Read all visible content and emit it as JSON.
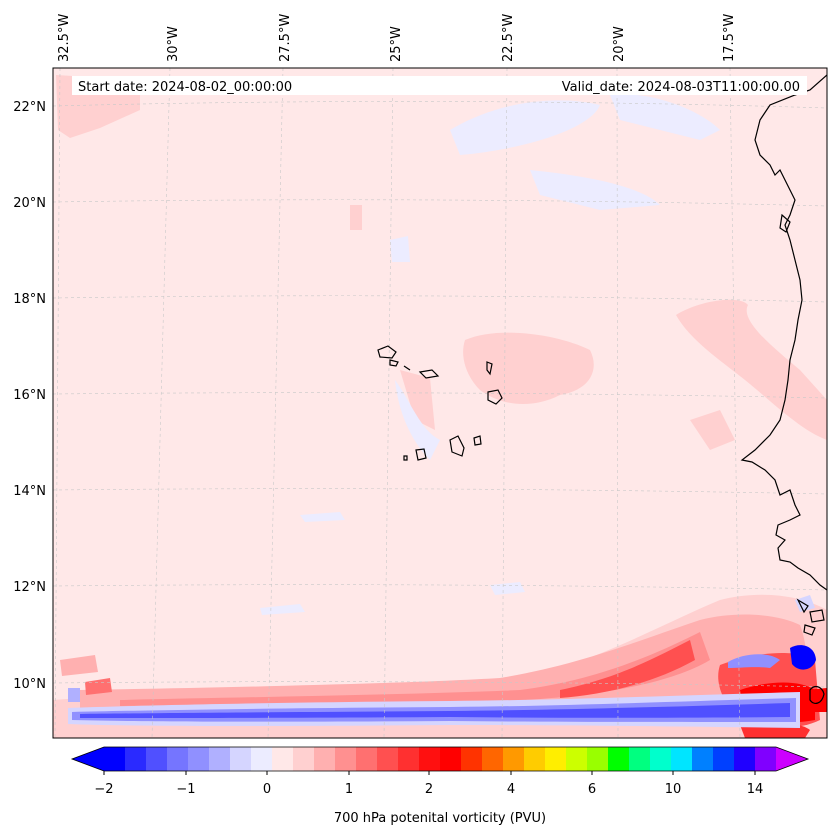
{
  "map": {
    "header": {
      "start_date": "Start date: 2024-08-02_00:00:00",
      "valid_date": "Valid_date: 2024-08-03T11:00:00.00"
    },
    "lon_labels": [
      "32.5°W",
      "30°W",
      "27.5°W",
      "25°W",
      "22.5°W",
      "20°W",
      "17.5°W"
    ],
    "lat_labels": [
      "22°N",
      "20°N",
      "18°N",
      "16°N",
      "14°N",
      "12°N",
      "10°N"
    ],
    "background_color": "#ffe8e8",
    "coastline_color": "#000000"
  },
  "colorbar": {
    "label": "700 hPa potenital vorticity (PVU)",
    "tick_labels": [
      "−2",
      "−1",
      "0",
      "1",
      "2",
      "4",
      "6",
      "10",
      "14"
    ],
    "colors": [
      "#0000ff",
      "#2a2aff",
      "#5050ff",
      "#7575ff",
      "#9090ff",
      "#b0b0ff",
      "#d5d5ff",
      "#ececff",
      "#ffe8e8",
      "#ffd0d0",
      "#ffb0b0",
      "#ff9090",
      "#ff7070",
      "#ff5050",
      "#ff3030",
      "#ff1010",
      "#ff0000",
      "#ff3300",
      "#ff6600",
      "#ff9900",
      "#ffcc00",
      "#ffee00",
      "#ccff00",
      "#99ff00",
      "#00ff00",
      "#00ff80",
      "#00ffcc",
      "#00e5ff",
      "#0080ff",
      "#0040ff",
      "#2000ff",
      "#8000ff"
    ],
    "under_color": "#0000ff",
    "over_color": "#cc00ff"
  }
}
